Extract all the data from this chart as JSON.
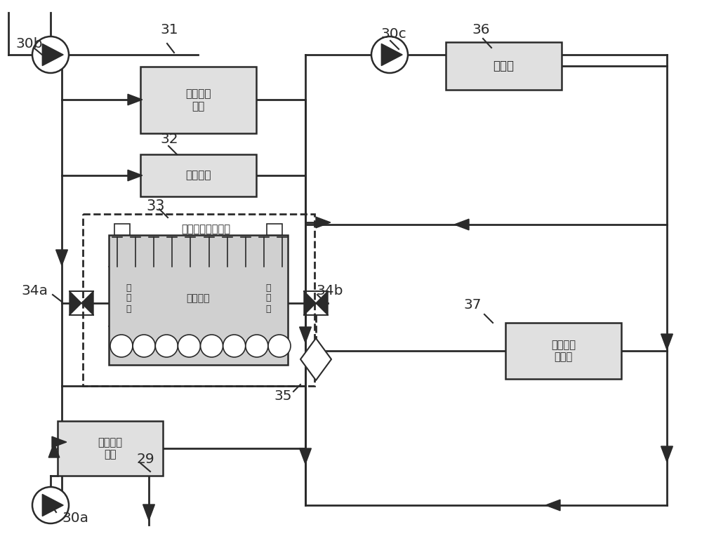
{
  "bg_color": "#ffffff",
  "lc": "#2a2a2a",
  "lw": 2.0,
  "box_fill": "#e0e0e0",
  "texts": {
    "lub": "滑油冷却\n系统",
    "air": "空冷系统",
    "es_label": "储能装置冷却系统",
    "pcm": "相变材料",
    "inlet": "进\n液\n口",
    "outlet": "出\n液\n口",
    "sw": "开式海水\n冷却",
    "engine": "发动机",
    "cyl": "缸套水冷\n却系统",
    "n30b": "30b",
    "n31": "31",
    "n32": "32",
    "n33": "33",
    "n34a": "34a",
    "n34b": "34b",
    "n35": "35",
    "n36": "36",
    "n37": "37",
    "n30c": "30c",
    "n29": "29",
    "n30a": "30a"
  }
}
